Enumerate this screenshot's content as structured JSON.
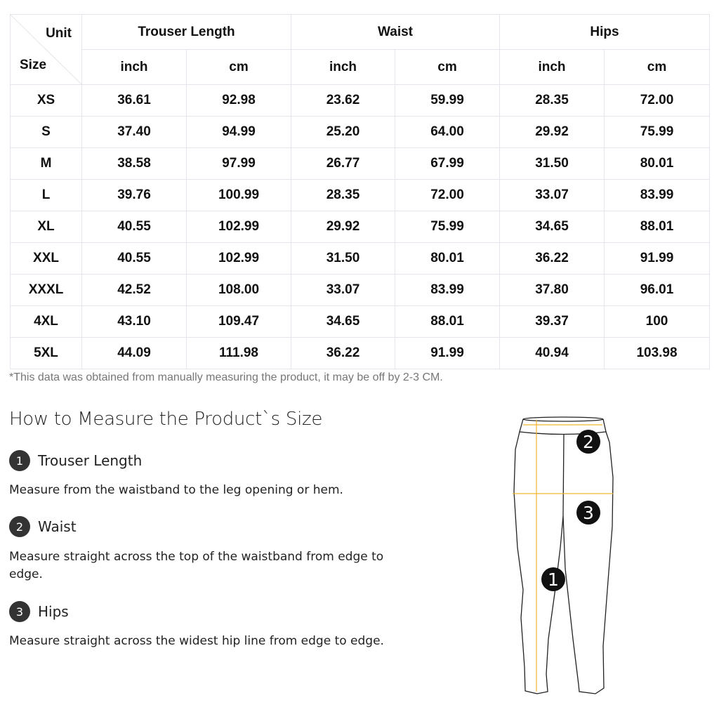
{
  "table": {
    "corner_unit": "Unit",
    "corner_size": "Size",
    "groups": [
      "Trouser Length",
      "Waist",
      "Hips"
    ],
    "units": [
      "inch",
      "cm",
      "inch",
      "cm",
      "inch",
      "cm"
    ],
    "rows": [
      [
        "XS",
        "36.61",
        "92.98",
        "23.62",
        "59.99",
        "28.35",
        "72.00"
      ],
      [
        "S",
        "37.40",
        "94.99",
        "25.20",
        "64.00",
        "29.92",
        "75.99"
      ],
      [
        "M",
        "38.58",
        "97.99",
        "26.77",
        "67.99",
        "31.50",
        "80.01"
      ],
      [
        "L",
        "39.76",
        "100.99",
        "28.35",
        "72.00",
        "33.07",
        "83.99"
      ],
      [
        "XL",
        "40.55",
        "102.99",
        "29.92",
        "75.99",
        "34.65",
        "88.01"
      ],
      [
        "XXL",
        "40.55",
        "102.99",
        "31.50",
        "80.01",
        "36.22",
        "91.99"
      ],
      [
        "XXXL",
        "42.52",
        "108.00",
        "33.07",
        "83.99",
        "37.80",
        "96.01"
      ],
      [
        "4XL",
        "43.10",
        "109.47",
        "34.65",
        "88.01",
        "39.37",
        "100"
      ],
      [
        "5XL",
        "44.09",
        "111.98",
        "36.22",
        "91.99",
        "40.94",
        "103.98"
      ]
    ]
  },
  "note": "*This data was obtained from manually measuring the product, it may be off by 2-3 CM.",
  "guide": {
    "title": "How to Measure the Product`s Size",
    "steps": [
      {
        "num": "1",
        "label": "Trouser Length",
        "desc": "Measure from the waistband to the leg opening or hem."
      },
      {
        "num": "2",
        "label": "Waist",
        "desc": "Measure straight across the top of the waistband from edge to edge."
      },
      {
        "num": "3",
        "label": "Hips",
        "desc": "Measure straight across the widest hip line from edge to edge."
      }
    ]
  },
  "diagram": {
    "markers": [
      "1",
      "2",
      "3"
    ],
    "line_color": "#f2b632"
  }
}
